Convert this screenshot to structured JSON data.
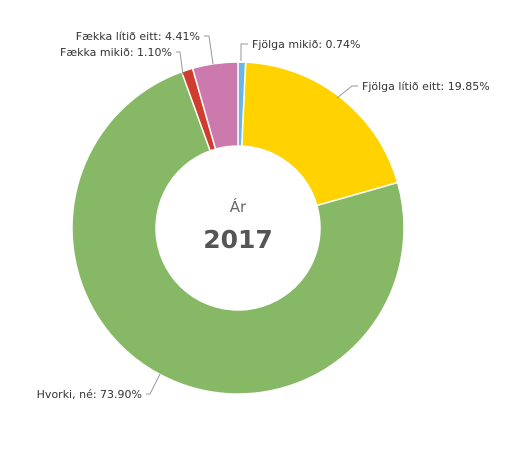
{
  "chart_data": {
    "type": "pie",
    "variant": "donut",
    "center": {
      "caption": "Ár",
      "value": "2017"
    },
    "slices": [
      {
        "name": "Fjölga mikið",
        "value": 0.74,
        "label": "Fjölga mikið: 0.74%",
        "color": "#68b8e3"
      },
      {
        "name": "Fjölga lítið eitt",
        "value": 19.85,
        "label": "Fjölga lítið eitt: 19.85%",
        "color": "#ffd200"
      },
      {
        "name": "Hvorki, né",
        "value": 73.9,
        "label": "Hvorki, né: 73.90%",
        "color": "#86b865"
      },
      {
        "name": "Fækka mikið",
        "value": 1.1,
        "label": "Fækka mikið: 1.10%",
        "color": "#d03c2e"
      },
      {
        "name": "Fækka lítið eitt",
        "value": 4.41,
        "label": "Fækka lítið eitt: 4.41%",
        "color": "#cc7aae"
      }
    ],
    "legend": "none"
  }
}
